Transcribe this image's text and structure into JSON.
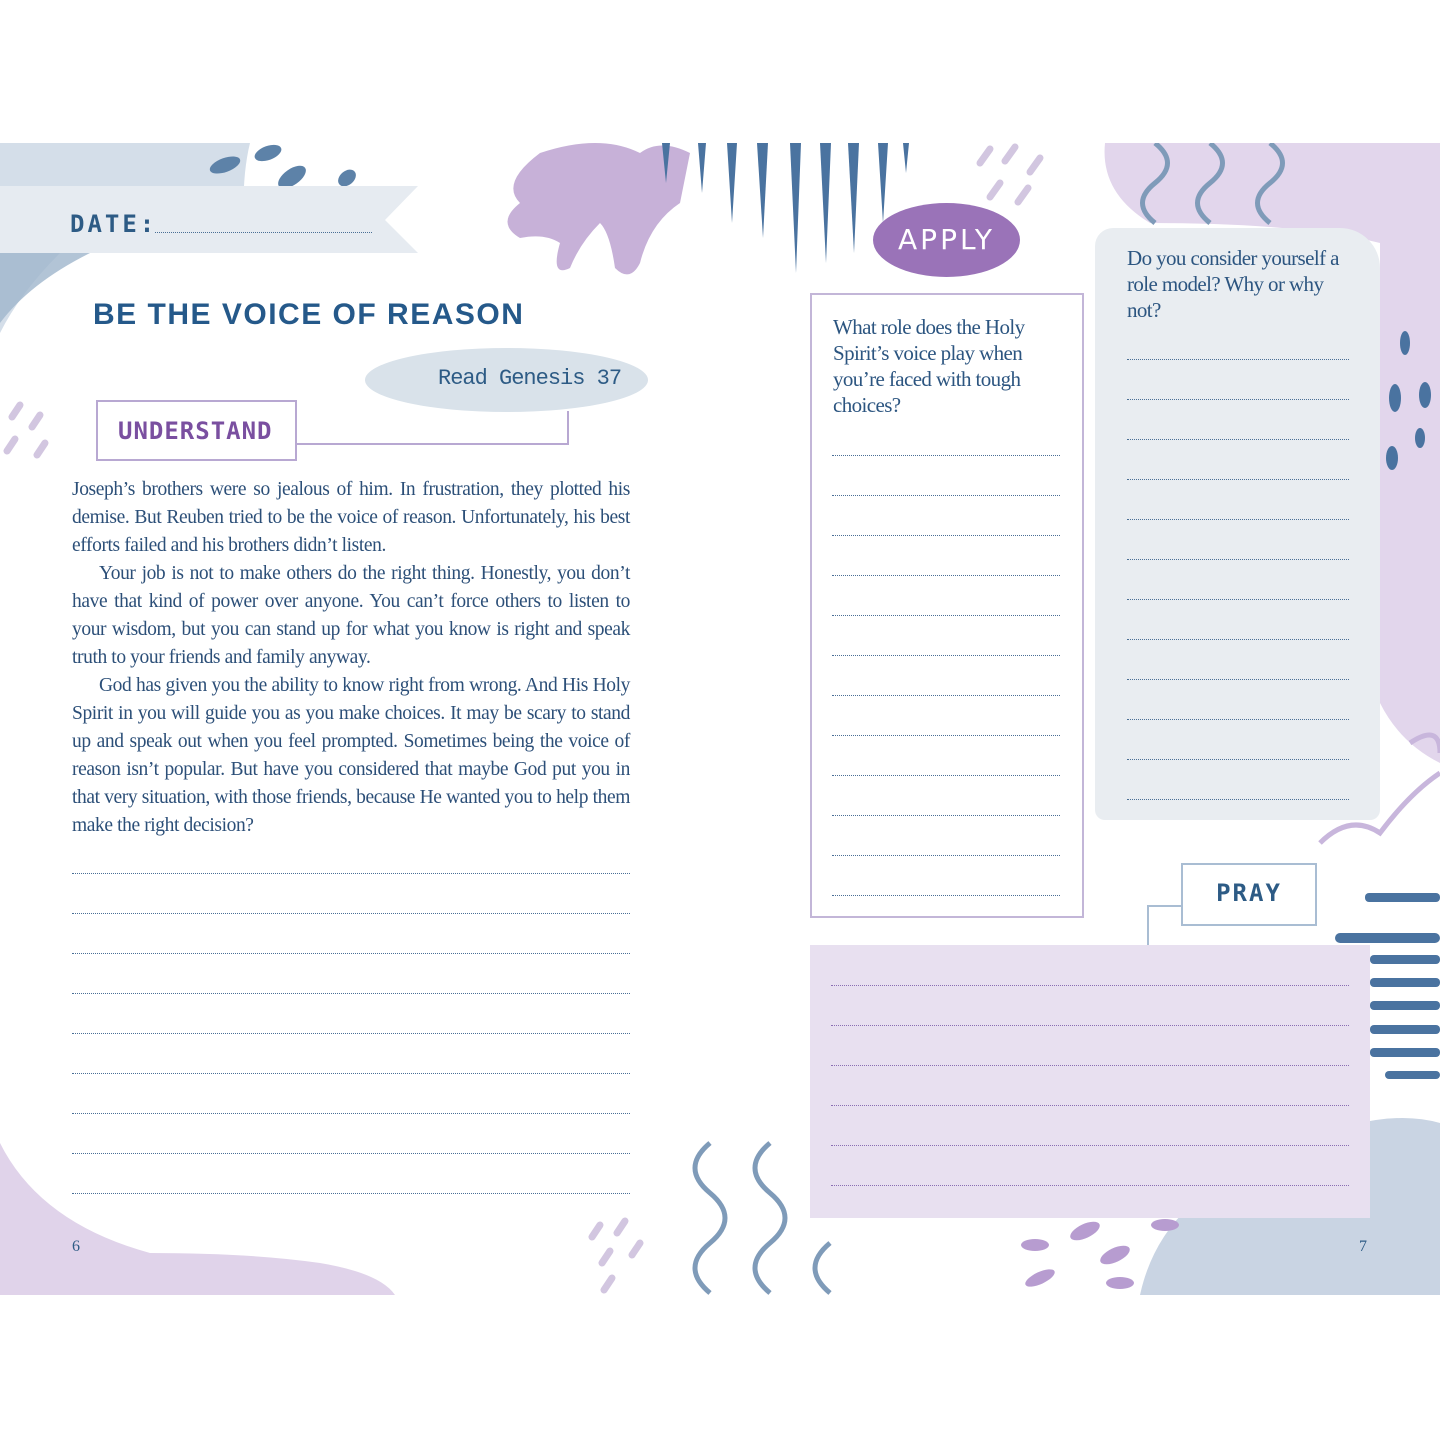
{
  "left_page": {
    "date_label": "DATE:",
    "title": "BE THE VOICE OF REASON",
    "scripture": "Read Genesis 37",
    "section_label": "UNDERSTAND",
    "paragraphs": [
      "Joseph’s brothers were so jealous of him. In frustration, they plotted his demise. But Reuben tried to be the voice of reason. Unfortunately, his best efforts failed and his brothers didn’t listen.",
      "Your job is not to make others do the right thing. Honestly, you don’t have that kind of power over anyone. You can’t force others to listen to your wisdom, but you can stand up for what you know is right and speak truth to your friends and family anyway.",
      "God has given you the ability to know right from wrong. And His Holy Spirit in you will guide you as you make choices. It may be scary to stand up and speak out when you feel prompted. Sometimes being the voice of reason isn’t popular. But have you considered that maybe God put you in that very situation, with those friends, because He wanted you to help them make the right decision?"
    ],
    "page_number": "6"
  },
  "right_page": {
    "apply_label": "APPLY",
    "apply_question": "What role does the Holy Spirit’s voice play when you’re faced with tough choices?",
    "role_model_question": "Do you consider yourself a role model? Why or why not?",
    "pray_label": "PRAY",
    "page_number": "7"
  },
  "colors": {
    "navy": "#2d5b85",
    "purple": "#9a73b8",
    "lavender": "#e8e0f0",
    "gray_panel": "#e9edf1"
  }
}
